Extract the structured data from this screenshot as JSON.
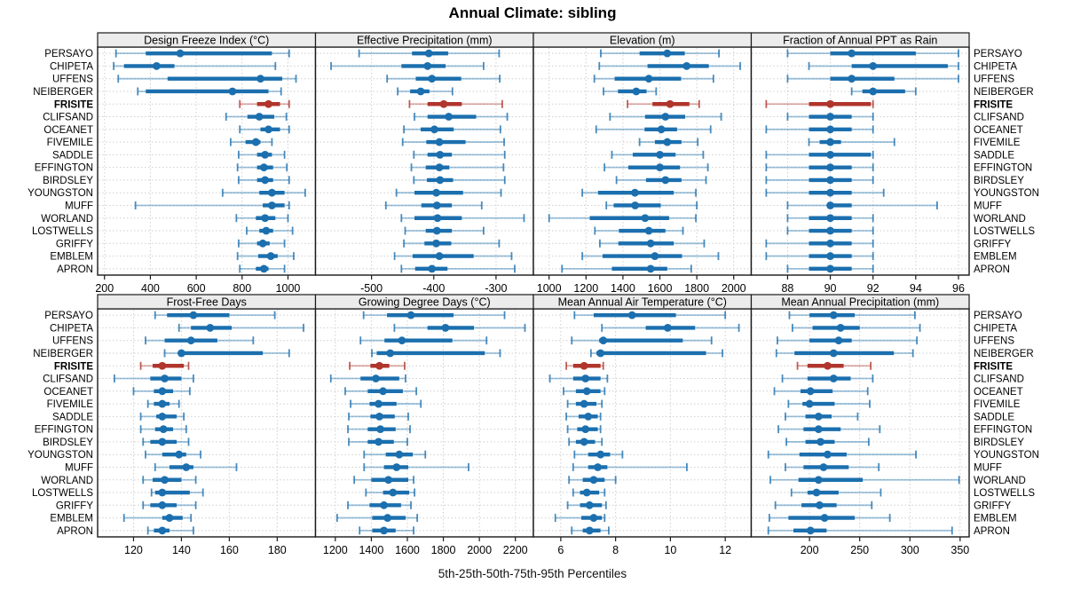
{
  "title": "Annual Climate: sibling",
  "caption": "5th-25th-50th-75th-95th Percentiles",
  "highlight_station": "FRISITE",
  "colors": {
    "series_normal": "#1B6FAE",
    "series_highlight": "#B0352C",
    "strip_bg": "#ECECEC",
    "grid": "#CFCFCF",
    "panel_border": "#1A1A1A",
    "text": "#000000"
  },
  "chart_data": {
    "type": "scatter",
    "subtype": "percentile-dot-whisker",
    "percentiles": [
      5,
      25,
      50,
      75,
      95
    ],
    "grid": true,
    "layout": "2 rows x 4 columns, free x scales, station labels on both sides",
    "stations": [
      "PERSAYO",
      "CHIPETA",
      "UFFENS",
      "NEIBERGER",
      "FRISITE",
      "CLIFSAND",
      "OCEANET",
      "FIVEMILE",
      "SADDLE",
      "EFFINGTON",
      "BIRDSLEY",
      "YOUNGSTON",
      "MUFF",
      "WORLAND",
      "LOSTWELLS",
      "GRIFFY",
      "EMBLEM",
      "APRON"
    ],
    "panels": [
      {
        "title": "Design Freeze Index (°C)",
        "grid_row": 0,
        "grid_col": 0,
        "xlim": [
          170,
          1120
        ],
        "ticks": [
          200,
          400,
          600,
          800,
          1000
        ],
        "values": [
          [
            250,
            380,
            530,
            930,
            1005
          ],
          [
            240,
            285,
            427,
            505,
            945
          ],
          [
            260,
            475,
            880,
            975,
            1035
          ],
          [
            345,
            380,
            758,
            915,
            970
          ],
          [
            790,
            865,
            915,
            965,
            1005
          ],
          [
            730,
            823,
            875,
            940,
            993
          ],
          [
            790,
            880,
            915,
            965,
            1005
          ],
          [
            750,
            815,
            860,
            880,
            930
          ],
          [
            785,
            865,
            900,
            930,
            985
          ],
          [
            780,
            865,
            895,
            935,
            995
          ],
          [
            785,
            865,
            900,
            935,
            1005
          ],
          [
            715,
            875,
            930,
            985,
            1075
          ],
          [
            335,
            890,
            930,
            985,
            1005
          ],
          [
            775,
            860,
            900,
            945,
            1000
          ],
          [
            820,
            875,
            905,
            935,
            1020
          ],
          [
            785,
            865,
            890,
            920,
            985
          ],
          [
            780,
            870,
            925,
            955,
            1025
          ],
          [
            790,
            860,
            895,
            915,
            985
          ]
        ]
      },
      {
        "title": "Effective Precipitation (mm)",
        "grid_row": 0,
        "grid_col": 1,
        "xlim": [
          -590,
          -240
        ],
        "ticks": [
          -500,
          -400,
          -300
        ],
        "values": [
          [
            -520,
            -435,
            -408,
            -377,
            -295
          ],
          [
            -565,
            -452,
            -410,
            -381,
            -320
          ],
          [
            -475,
            -429,
            -403,
            -356,
            -294
          ],
          [
            -458,
            -438,
            -421,
            -407,
            -370
          ],
          [
            -439,
            -410,
            -384,
            -355,
            -290
          ],
          [
            -431,
            -410,
            -376,
            -332,
            -282
          ],
          [
            -448,
            -421,
            -399,
            -368,
            -293
          ],
          [
            -450,
            -412,
            -391,
            -349,
            -287
          ],
          [
            -432,
            -410,
            -390,
            -371,
            -286
          ],
          [
            -436,
            -413,
            -391,
            -375,
            -288
          ],
          [
            -432,
            -411,
            -390,
            -369,
            -286
          ],
          [
            -460,
            -431,
            -396,
            -353,
            -292
          ],
          [
            -477,
            -420,
            -395,
            -371,
            -323
          ],
          [
            -452,
            -431,
            -394,
            -355,
            -255
          ],
          [
            -446,
            -413,
            -395,
            -371,
            -320
          ],
          [
            -448,
            -415,
            -396,
            -372,
            -295
          ],
          [
            -463,
            -434,
            -391,
            -336,
            -275
          ],
          [
            -452,
            -430,
            -403,
            -378,
            -270
          ]
        ]
      },
      {
        "title": "Elevation (m)",
        "grid_row": 0,
        "grid_col": 2,
        "xlim": [
          915,
          2095
        ],
        "ticks": [
          1000,
          1200,
          1400,
          1600,
          1800,
          2000
        ],
        "values": [
          [
            1280,
            1490,
            1640,
            1735,
            1920
          ],
          [
            1272,
            1533,
            1745,
            1865,
            2035
          ],
          [
            1245,
            1355,
            1540,
            1715,
            1890
          ],
          [
            1295,
            1373,
            1472,
            1528,
            1580
          ],
          [
            1425,
            1560,
            1655,
            1760,
            1813
          ],
          [
            1330,
            1520,
            1630,
            1737,
            1932
          ],
          [
            1255,
            1517,
            1608,
            1693,
            1875
          ],
          [
            1490,
            1573,
            1640,
            1717,
            1805
          ],
          [
            1340,
            1453,
            1600,
            1685,
            1835
          ],
          [
            1300,
            1429,
            1600,
            1709,
            1860
          ],
          [
            1365,
            1525,
            1630,
            1717,
            1850
          ],
          [
            1180,
            1265,
            1465,
            1675,
            1795
          ],
          [
            1310,
            1350,
            1466,
            1605,
            1800
          ],
          [
            1000,
            1220,
            1520,
            1650,
            1795
          ],
          [
            1248,
            1378,
            1540,
            1630,
            1725
          ],
          [
            1275,
            1375,
            1550,
            1675,
            1840
          ],
          [
            1180,
            1290,
            1573,
            1720,
            1917
          ],
          [
            1070,
            1340,
            1550,
            1640,
            1770
          ]
        ]
      },
      {
        "title": "Fraction of Annual PPT as Rain",
        "grid_row": 0,
        "grid_col": 3,
        "xlim": [
          86.3,
          96.5
        ],
        "ticks": [
          88,
          90,
          92,
          94,
          96
        ],
        "values": [
          [
            88,
            90,
            91,
            94,
            96
          ],
          [
            89,
            91,
            92,
            95.5,
            96
          ],
          [
            88,
            90,
            91,
            93,
            96
          ],
          [
            91,
            91.5,
            92,
            93.5,
            94
          ],
          [
            87,
            89,
            90,
            91.9,
            92
          ],
          [
            88,
            89,
            90,
            91,
            92
          ],
          [
            87,
            89,
            90,
            91,
            92
          ],
          [
            89,
            89.5,
            90,
            90.5,
            93
          ],
          [
            87,
            89,
            90,
            91.9,
            92
          ],
          [
            87,
            89,
            90,
            91,
            92
          ],
          [
            87,
            89,
            90,
            91,
            92
          ],
          [
            87,
            89,
            90,
            91,
            92.5
          ],
          [
            88,
            89.9,
            90,
            91,
            95
          ],
          [
            88,
            89,
            90,
            91,
            92
          ],
          [
            88,
            89,
            90,
            91,
            92
          ],
          [
            87,
            89,
            90,
            91,
            92
          ],
          [
            87,
            89,
            90,
            91,
            92
          ],
          [
            88,
            89,
            90,
            91,
            92
          ]
        ]
      },
      {
        "title": "Frost-Free Days",
        "grid_row": 1,
        "grid_col": 0,
        "xlim": [
          105,
          196
        ],
        "ticks": [
          120,
          140,
          160,
          180
        ],
        "values": [
          [
            129,
            134,
            145,
            160,
            179
          ],
          [
            139,
            144,
            152,
            161,
            191
          ],
          [
            125,
            133,
            144,
            155,
            170
          ],
          [
            133,
            139,
            140,
            174,
            185
          ],
          [
            123,
            128,
            132,
            141,
            143
          ],
          [
            112,
            127,
            133,
            140,
            145
          ],
          [
            120,
            128.5,
            132,
            136.5,
            143.5
          ],
          [
            126,
            128.5,
            132,
            135,
            139
          ],
          [
            123,
            129.5,
            132,
            138,
            141
          ],
          [
            123,
            129,
            132.5,
            136.5,
            142
          ],
          [
            124,
            127,
            132,
            138,
            143
          ],
          [
            125,
            132,
            139,
            142,
            148
          ],
          [
            129,
            135,
            142,
            145,
            163
          ],
          [
            124,
            128,
            133,
            140,
            146
          ],
          [
            127.5,
            129,
            132,
            143.5,
            149
          ],
          [
            124,
            127,
            132,
            138,
            146
          ],
          [
            116,
            132,
            135,
            140.5,
            144
          ],
          [
            126,
            128.5,
            132,
            135,
            145
          ]
        ]
      },
      {
        "title": "Growing Degree Days (°C)",
        "grid_row": 1,
        "grid_col": 1,
        "xlim": [
          1090,
          2300
        ],
        "ticks": [
          1200,
          1400,
          1600,
          1800,
          2000,
          2200
        ],
        "values": [
          [
            1357,
            1487,
            1620,
            1857,
            2140
          ],
          [
            1528,
            1712,
            1812,
            1970,
            2253
          ],
          [
            1340,
            1473,
            1570,
            1850,
            2040
          ],
          [
            1403,
            1430,
            1505,
            2030,
            2115
          ],
          [
            1280,
            1395,
            1445,
            1500,
            1585
          ],
          [
            1175,
            1340,
            1425,
            1555,
            1590
          ],
          [
            1255,
            1380,
            1465,
            1575,
            1650
          ],
          [
            1285,
            1390,
            1440,
            1540,
            1675
          ],
          [
            1275,
            1395,
            1445,
            1530,
            1605
          ],
          [
            1270,
            1380,
            1450,
            1535,
            1615
          ],
          [
            1275,
            1380,
            1440,
            1525,
            1600
          ],
          [
            1360,
            1480,
            1555,
            1630,
            1700
          ],
          [
            1360,
            1470,
            1540,
            1605,
            1940
          ],
          [
            1305,
            1400,
            1495,
            1605,
            1635
          ],
          [
            1370,
            1465,
            1520,
            1610,
            1640
          ],
          [
            1270,
            1390,
            1470,
            1565,
            1620
          ],
          [
            1210,
            1405,
            1490,
            1590,
            1655
          ],
          [
            1335,
            1405,
            1470,
            1535,
            1635
          ]
        ]
      },
      {
        "title": "Mean Annual Air Temperature (°C)",
        "grid_row": 1,
        "grid_col": 2,
        "xlim": [
          5.0,
          12.95
        ],
        "ticks": [
          6,
          8,
          10,
          12
        ],
        "values": [
          [
            6.5,
            7.2,
            8.6,
            10.2,
            12.0
          ],
          [
            7.5,
            9.1,
            9.9,
            10.9,
            12.5
          ],
          [
            6.4,
            7.4,
            7.55,
            10.45,
            11.5
          ],
          [
            7.1,
            7.3,
            7.45,
            11.3,
            11.9
          ],
          [
            6.2,
            6.45,
            6.85,
            7.45,
            7.55
          ],
          [
            5.6,
            6.45,
            6.9,
            7.45,
            7.7
          ],
          [
            6.1,
            6.55,
            6.95,
            7.45,
            7.6
          ],
          [
            6.25,
            6.55,
            6.85,
            7.3,
            7.5
          ],
          [
            6.2,
            6.65,
            7.0,
            7.35,
            7.45
          ],
          [
            6.25,
            6.6,
            6.9,
            7.35,
            7.45
          ],
          [
            6.3,
            6.55,
            6.85,
            7.25,
            7.5
          ],
          [
            6.5,
            7.0,
            7.45,
            7.8,
            8.25
          ],
          [
            6.45,
            7.0,
            7.35,
            7.7,
            10.6
          ],
          [
            6.3,
            6.8,
            7.2,
            7.6,
            8.0
          ],
          [
            6.45,
            6.7,
            6.95,
            7.4,
            7.6
          ],
          [
            6.25,
            6.7,
            7.05,
            7.5,
            7.65
          ],
          [
            5.8,
            6.75,
            7.2,
            7.5,
            7.6
          ],
          [
            6.4,
            6.8,
            7.05,
            7.45,
            7.75
          ]
        ]
      },
      {
        "title": "Mean Annual Precipitation (mm)",
        "grid_row": 1,
        "grid_col": 3,
        "xlim": [
          142,
          359
        ],
        "ticks": [
          200,
          250,
          300,
          350
        ],
        "values": [
          [
            180,
            200,
            224,
            245,
            305
          ],
          [
            183,
            203,
            231,
            250,
            310
          ],
          [
            168,
            200,
            229,
            242,
            307
          ],
          [
            167,
            185,
            224,
            284,
            303
          ],
          [
            188,
            198,
            218,
            234,
            261
          ],
          [
            173,
            198,
            224,
            241,
            263
          ],
          [
            165,
            191,
            201,
            223,
            258
          ],
          [
            179,
            193,
            200,
            225,
            260
          ],
          [
            176,
            196,
            209,
            222,
            248
          ],
          [
            169,
            194,
            209,
            231,
            270
          ],
          [
            177,
            196,
            211,
            225,
            259
          ],
          [
            159,
            190,
            218,
            237,
            306
          ],
          [
            176,
            194,
            214,
            239,
            269
          ],
          [
            161,
            189,
            209,
            253,
            349
          ],
          [
            182,
            198,
            207,
            229,
            271
          ],
          [
            166,
            192,
            210,
            227,
            262
          ],
          [
            160,
            179,
            215,
            245,
            280
          ],
          [
            159,
            184,
            201,
            217,
            342
          ]
        ]
      }
    ]
  }
}
